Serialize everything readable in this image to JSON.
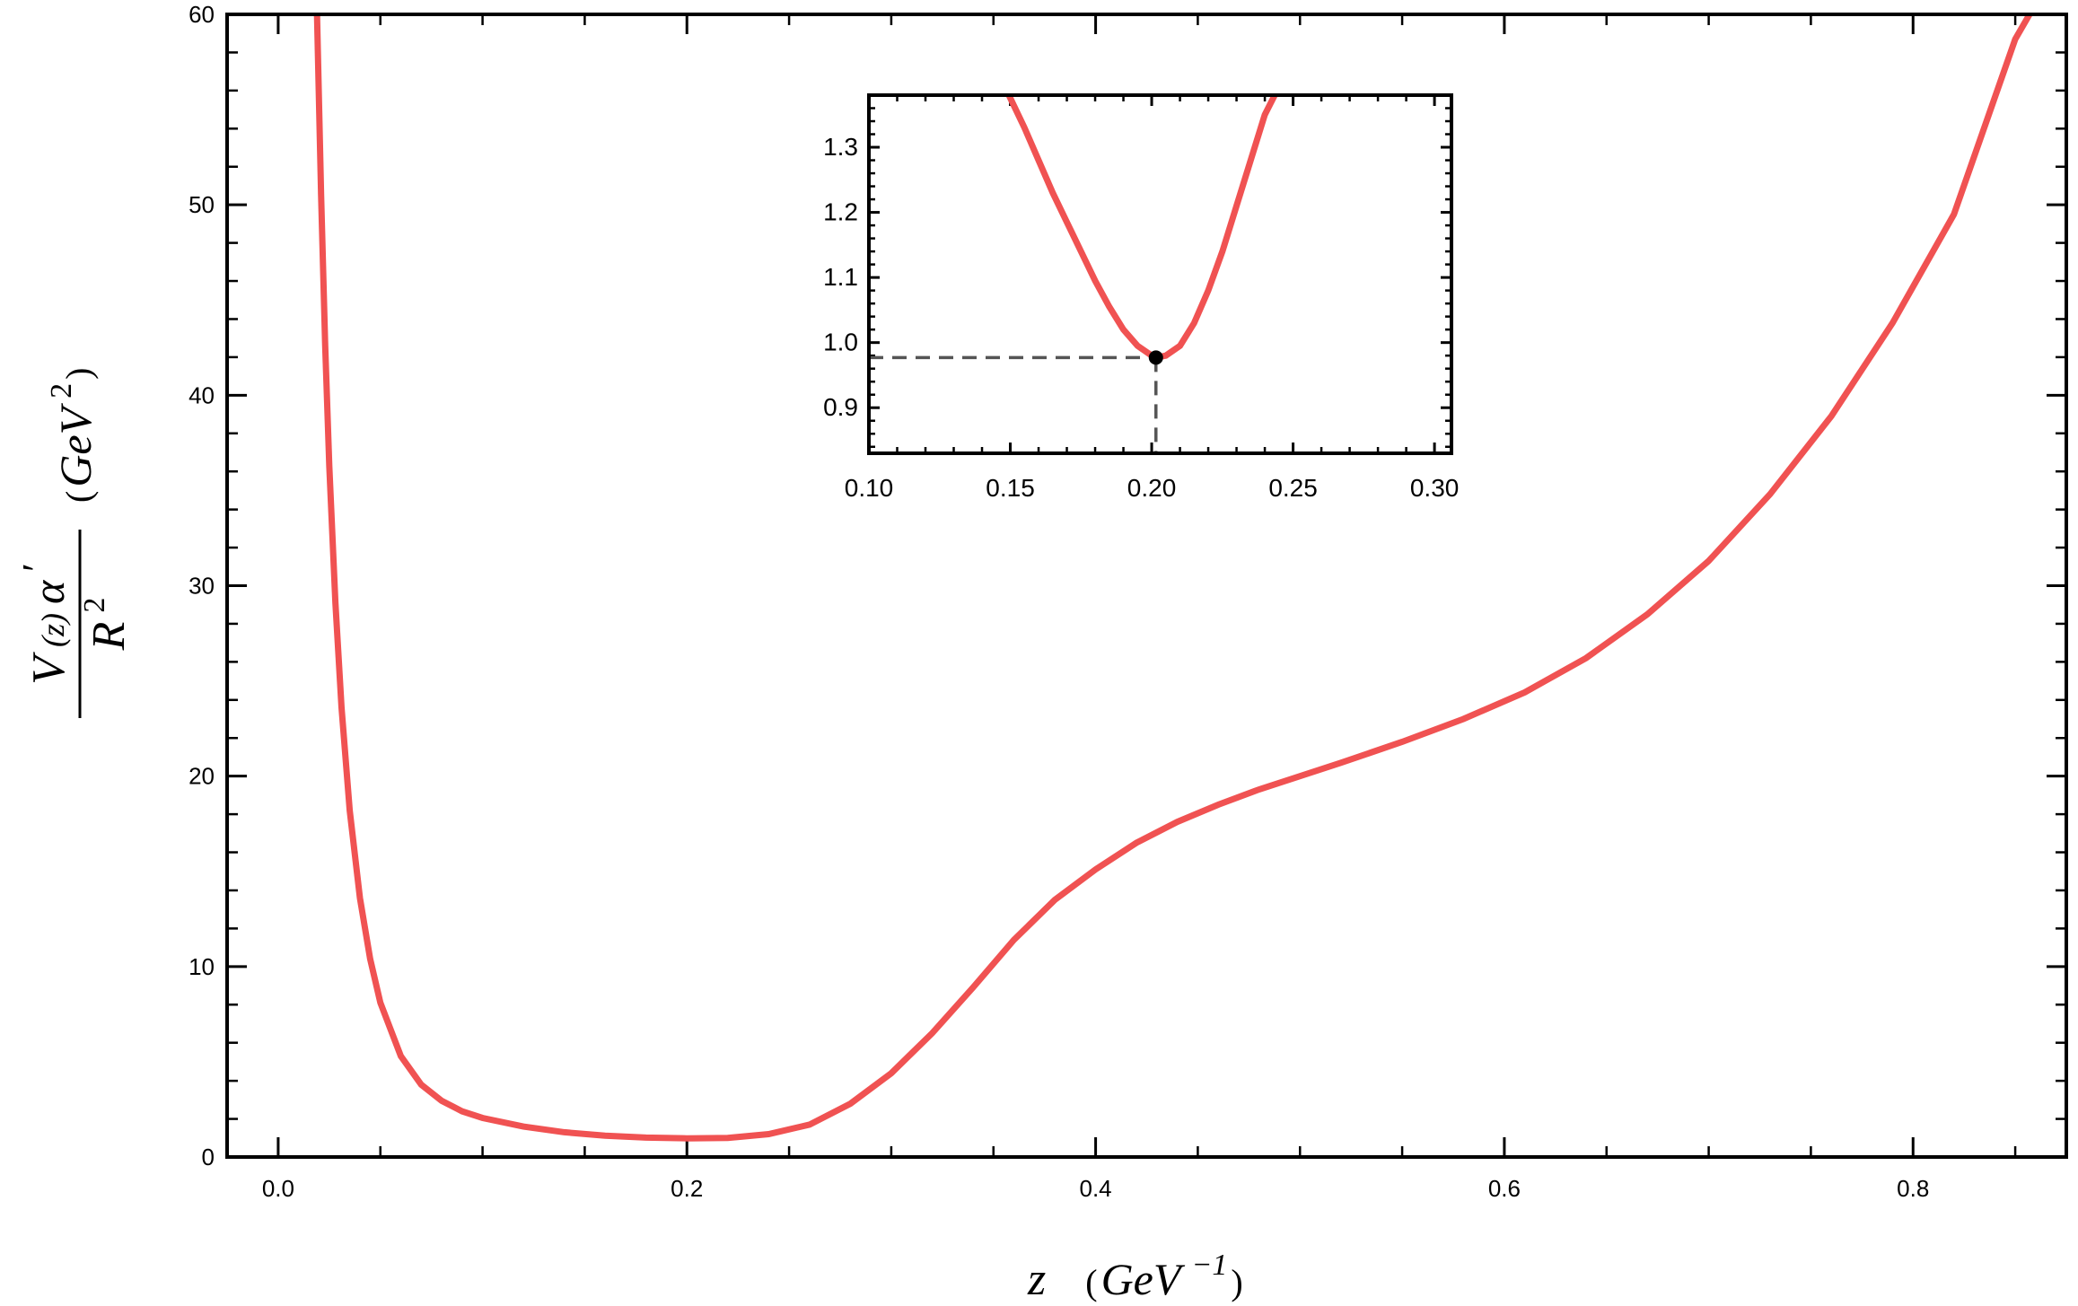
{
  "chart_data": {
    "type": "line",
    "main": {
      "xlabel": {
        "var": "z",
        "open": "(",
        "unit": "GeV",
        "exp": "−1",
        "close": ")"
      },
      "ylabel": {
        "num_v": "V",
        "num_arg": "(z)",
        "num_alpha": "α",
        "num_prime": "′",
        "den_r": "R",
        "den_exp": "2",
        "unit_open": "(",
        "unit": "GeV",
        "unit_exp": "2",
        "unit_close": ")"
      },
      "xlim": [
        -0.025,
        0.875
      ],
      "ylim": [
        0,
        60
      ],
      "xticks": [
        {
          "value": 0.0,
          "label": "0.0"
        },
        {
          "value": 0.2,
          "label": "0.2"
        },
        {
          "value": 0.4,
          "label": "0.4"
        },
        {
          "value": 0.6,
          "label": "0.6"
        },
        {
          "value": 0.8,
          "label": "0.8"
        }
      ],
      "yticks": [
        {
          "value": 0,
          "label": "0"
        },
        {
          "value": 10,
          "label": "10"
        },
        {
          "value": 20,
          "label": "20"
        },
        {
          "value": 30,
          "label": "30"
        },
        {
          "value": 40,
          "label": "40"
        },
        {
          "value": 50,
          "label": "50"
        },
        {
          "value": 60,
          "label": "60"
        }
      ],
      "series": [
        {
          "color": "#f05252",
          "x": [
            0.019,
            0.021,
            0.023,
            0.025,
            0.028,
            0.031,
            0.035,
            0.04,
            0.045,
            0.05,
            0.06,
            0.07,
            0.08,
            0.09,
            0.1,
            0.12,
            0.14,
            0.16,
            0.18,
            0.2,
            0.22,
            0.24,
            0.26,
            0.28,
            0.3,
            0.32,
            0.34,
            0.36,
            0.38,
            0.4,
            0.42,
            0.44,
            0.46,
            0.48,
            0.5,
            0.52,
            0.55,
            0.58,
            0.61,
            0.64,
            0.67,
            0.7,
            0.73,
            0.76,
            0.79,
            0.82,
            0.85,
            0.857
          ],
          "y": [
            60,
            50.5,
            42.6,
            36.3,
            29.1,
            23.6,
            18.2,
            13.6,
            10.4,
            8.1,
            5.3,
            3.8,
            2.95,
            2.4,
            2.05,
            1.6,
            1.3,
            1.12,
            1.02,
            0.98,
            1.0,
            1.2,
            1.7,
            2.8,
            4.4,
            6.5,
            8.9,
            11.4,
            13.5,
            15.1,
            16.5,
            17.6,
            18.5,
            19.3,
            20.0,
            20.7,
            21.8,
            23.0,
            24.4,
            26.2,
            28.5,
            31.3,
            34.8,
            38.9,
            43.8,
            49.5,
            58.7,
            60
          ]
        }
      ]
    },
    "inset": {
      "xlim": [
        0.1,
        0.306
      ],
      "ylim": [
        0.83,
        1.38
      ],
      "xticks": [
        {
          "value": 0.1,
          "label": "0.10"
        },
        {
          "value": 0.15,
          "label": "0.15"
        },
        {
          "value": 0.2,
          "label": "0.20"
        },
        {
          "value": 0.25,
          "label": "0.25"
        },
        {
          "value": 0.3,
          "label": "0.30"
        }
      ],
      "yticks": [
        {
          "value": 0.9,
          "label": "0.9"
        },
        {
          "value": 1.0,
          "label": "1.0"
        },
        {
          "value": 1.1,
          "label": "1.1"
        },
        {
          "value": 1.2,
          "label": "1.2"
        },
        {
          "value": 1.3,
          "label": "1.3"
        }
      ],
      "series": [
        {
          "color": "#f05252",
          "x": [
            0.1495,
            0.155,
            0.16,
            0.165,
            0.17,
            0.175,
            0.18,
            0.185,
            0.19,
            0.195,
            0.2,
            0.2015,
            0.205,
            0.21,
            0.215,
            0.22,
            0.225,
            0.23,
            0.235,
            0.24,
            0.2435
          ],
          "y": [
            1.38,
            1.33,
            1.28,
            1.23,
            1.185,
            1.14,
            1.095,
            1.055,
            1.02,
            0.995,
            0.98,
            0.977,
            0.98,
            0.995,
            1.03,
            1.08,
            1.14,
            1.21,
            1.28,
            1.35,
            1.38
          ]
        }
      ],
      "minimum": {
        "x": 0.2015,
        "y": 0.977,
        "color": "#000000",
        "guide_color": "#555555"
      }
    }
  }
}
